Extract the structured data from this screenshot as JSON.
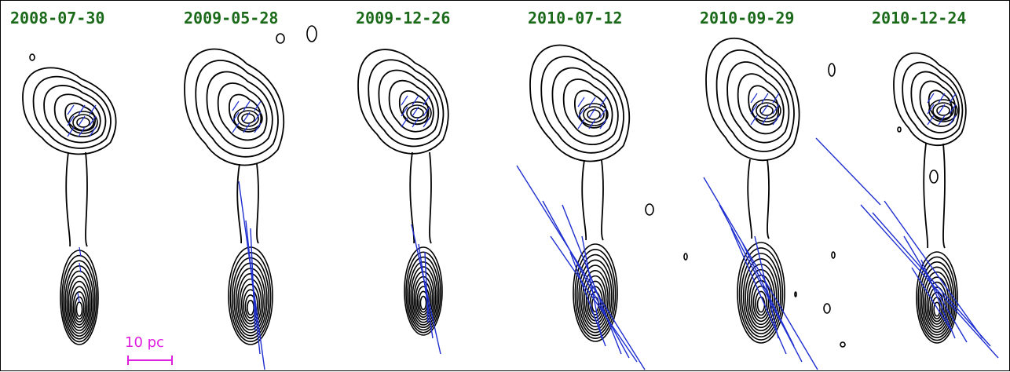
{
  "figure": {
    "epochs": [
      {
        "label": "2008-07-30"
      },
      {
        "label": "2009-05-28"
      },
      {
        "label": "2009-12-26"
      },
      {
        "label": "2010-07-12"
      },
      {
        "label": "2010-09-29"
      },
      {
        "label": "2010-12-24"
      }
    ],
    "scale_bar": {
      "label": "10 pc"
    },
    "colors": {
      "epoch_label": "#1a6a1a",
      "contour": "#000000",
      "polarization_vector": "#1f2fd0",
      "scale_bar": "#e020e0"
    }
  }
}
